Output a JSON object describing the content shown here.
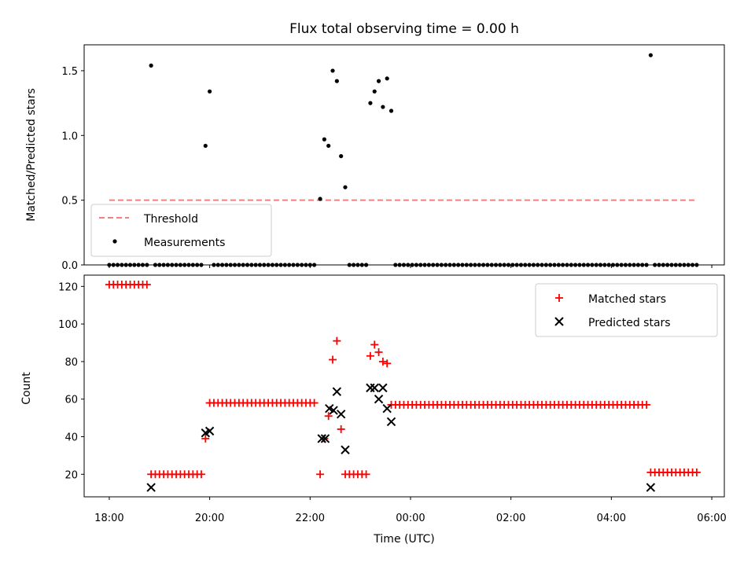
{
  "chart_data": [
    {
      "type": "scatter",
      "title": "Flux total observing time = 0.00 h",
      "xlabel": "",
      "ylabel": "Matched/Predicted stars",
      "ylim": [
        0,
        1.7
      ],
      "yticks": [
        0.0,
        0.5,
        1.0,
        1.5
      ],
      "ytick_labels": [
        "0.0",
        "0.5",
        "1.0",
        "1.5"
      ],
      "legend_position": "lower-left",
      "colors": {
        "threshold": "#f08080",
        "measurements": "#000000"
      },
      "threshold": {
        "name": "Threshold",
        "value": 0.5,
        "x_start": "18:00",
        "x_end": "05:40"
      },
      "measurements_name": "Measurements",
      "points": [
        [
          "18:00",
          0
        ],
        [
          "18:05",
          0
        ],
        [
          "18:10",
          0
        ],
        [
          "18:15",
          0
        ],
        [
          "18:20",
          0
        ],
        [
          "18:25",
          0
        ],
        [
          "18:30",
          0
        ],
        [
          "18:35",
          0
        ],
        [
          "18:40",
          0
        ],
        [
          "18:45",
          0
        ],
        [
          "18:50",
          1.54
        ],
        [
          "18:55",
          0
        ],
        [
          "19:00",
          0
        ],
        [
          "19:05",
          0
        ],
        [
          "19:10",
          0
        ],
        [
          "19:15",
          0
        ],
        [
          "19:20",
          0
        ],
        [
          "19:25",
          0
        ],
        [
          "19:30",
          0
        ],
        [
          "19:35",
          0
        ],
        [
          "19:40",
          0
        ],
        [
          "19:45",
          0
        ],
        [
          "19:50",
          0
        ],
        [
          "19:55",
          0.92
        ],
        [
          "20:00",
          1.34
        ],
        [
          "20:05",
          0
        ],
        [
          "20:10",
          0
        ],
        [
          "20:15",
          0
        ],
        [
          "20:20",
          0
        ],
        [
          "20:25",
          0
        ],
        [
          "20:30",
          0
        ],
        [
          "20:35",
          0
        ],
        [
          "20:40",
          0
        ],
        [
          "20:45",
          0
        ],
        [
          "20:50",
          0
        ],
        [
          "20:55",
          0
        ],
        [
          "21:00",
          0
        ],
        [
          "21:05",
          0
        ],
        [
          "21:10",
          0
        ],
        [
          "21:15",
          0
        ],
        [
          "21:20",
          0
        ],
        [
          "21:25",
          0
        ],
        [
          "21:30",
          0
        ],
        [
          "21:35",
          0
        ],
        [
          "21:40",
          0
        ],
        [
          "21:45",
          0
        ],
        [
          "21:50",
          0
        ],
        [
          "21:55",
          0
        ],
        [
          "22:00",
          0
        ],
        [
          "22:05",
          0
        ],
        [
          "22:12",
          0.51
        ],
        [
          "22:17",
          0.97
        ],
        [
          "22:22",
          0.92
        ],
        [
          "22:27",
          1.5
        ],
        [
          "22:32",
          1.42
        ],
        [
          "22:37",
          0.84
        ],
        [
          "22:42",
          0.6
        ],
        [
          "22:47",
          0
        ],
        [
          "22:52",
          0
        ],
        [
          "22:57",
          0
        ],
        [
          "23:02",
          0
        ],
        [
          "23:07",
          0
        ],
        [
          "23:12",
          1.25
        ],
        [
          "23:17",
          1.34
        ],
        [
          "23:22",
          1.42
        ],
        [
          "23:27",
          1.22
        ],
        [
          "23:32",
          1.44
        ],
        [
          "23:37",
          1.19
        ],
        [
          "23:42",
          0
        ],
        [
          "23:47",
          0
        ],
        [
          "23:52",
          0
        ],
        [
          "23:57",
          0
        ],
        [
          "00:02",
          0
        ],
        [
          "00:07",
          0
        ],
        [
          "00:12",
          0
        ],
        [
          "00:17",
          0
        ],
        [
          "00:22",
          0
        ],
        [
          "00:27",
          0
        ],
        [
          "00:32",
          0
        ],
        [
          "00:37",
          0
        ],
        [
          "00:42",
          0
        ],
        [
          "00:47",
          0
        ],
        [
          "00:52",
          0
        ],
        [
          "00:57",
          0
        ],
        [
          "01:02",
          0
        ],
        [
          "01:07",
          0
        ],
        [
          "01:12",
          0
        ],
        [
          "01:17",
          0
        ],
        [
          "01:22",
          0
        ],
        [
          "01:27",
          0
        ],
        [
          "01:32",
          0
        ],
        [
          "01:37",
          0
        ],
        [
          "01:42",
          0
        ],
        [
          "01:47",
          0
        ],
        [
          "01:52",
          0
        ],
        [
          "01:57",
          0
        ],
        [
          "02:02",
          0
        ],
        [
          "02:07",
          0
        ],
        [
          "02:12",
          0
        ],
        [
          "02:17",
          0
        ],
        [
          "02:22",
          0
        ],
        [
          "02:27",
          0
        ],
        [
          "02:32",
          0
        ],
        [
          "02:37",
          0
        ],
        [
          "02:42",
          0
        ],
        [
          "02:47",
          0
        ],
        [
          "02:52",
          0
        ],
        [
          "02:57",
          0
        ],
        [
          "03:02",
          0
        ],
        [
          "03:07",
          0
        ],
        [
          "03:12",
          0
        ],
        [
          "03:17",
          0
        ],
        [
          "03:22",
          0
        ],
        [
          "03:27",
          0
        ],
        [
          "03:32",
          0
        ],
        [
          "03:37",
          0
        ],
        [
          "03:42",
          0
        ],
        [
          "03:47",
          0
        ],
        [
          "03:52",
          0
        ],
        [
          "03:57",
          0
        ],
        [
          "04:02",
          0
        ],
        [
          "04:07",
          0
        ],
        [
          "04:12",
          0
        ],
        [
          "04:17",
          0
        ],
        [
          "04:22",
          0
        ],
        [
          "04:27",
          0
        ],
        [
          "04:32",
          0
        ],
        [
          "04:37",
          0
        ],
        [
          "04:42",
          0
        ],
        [
          "04:47",
          1.62
        ],
        [
          "04:52",
          0
        ],
        [
          "04:57",
          0
        ],
        [
          "05:02",
          0
        ],
        [
          "05:07",
          0
        ],
        [
          "05:12",
          0
        ],
        [
          "05:17",
          0
        ],
        [
          "05:22",
          0
        ],
        [
          "05:27",
          0
        ],
        [
          "05:32",
          0
        ],
        [
          "05:37",
          0
        ],
        [
          "05:42",
          0
        ]
      ]
    },
    {
      "type": "scatter",
      "title": "",
      "xlabel": "Time (UTC)",
      "ylabel": "Count",
      "xlim": [
        "17:30",
        "06:15"
      ],
      "ylim": [
        8,
        126
      ],
      "xticks": [
        "18:00",
        "20:00",
        "22:00",
        "00:00",
        "02:00",
        "04:00",
        "06:00"
      ],
      "yticks": [
        20,
        40,
        60,
        80,
        100,
        120
      ],
      "ytick_labels": [
        "20",
        "40",
        "60",
        "80",
        "100",
        "120"
      ],
      "legend_position": "upper-right",
      "colors": {
        "matched": "#ff0000",
        "predicted": "#000000"
      },
      "series": [
        {
          "name": "Matched stars",
          "marker": "plus",
          "points": [
            [
              "18:00",
              121
            ],
            [
              "18:05",
              121
            ],
            [
              "18:10",
              121
            ],
            [
              "18:15",
              121
            ],
            [
              "18:20",
              121
            ],
            [
              "18:25",
              121
            ],
            [
              "18:30",
              121
            ],
            [
              "18:35",
              121
            ],
            [
              "18:40",
              121
            ],
            [
              "18:45",
              121
            ],
            [
              "18:50",
              20
            ],
            [
              "18:55",
              20
            ],
            [
              "19:00",
              20
            ],
            [
              "19:05",
              20
            ],
            [
              "19:10",
              20
            ],
            [
              "19:15",
              20
            ],
            [
              "19:20",
              20
            ],
            [
              "19:25",
              20
            ],
            [
              "19:30",
              20
            ],
            [
              "19:35",
              20
            ],
            [
              "19:40",
              20
            ],
            [
              "19:45",
              20
            ],
            [
              "19:50",
              20
            ],
            [
              "19:55",
              39
            ],
            [
              "20:00",
              58
            ],
            [
              "20:05",
              58
            ],
            [
              "20:10",
              58
            ],
            [
              "20:15",
              58
            ],
            [
              "20:20",
              58
            ],
            [
              "20:25",
              58
            ],
            [
              "20:30",
              58
            ],
            [
              "20:35",
              58
            ],
            [
              "20:40",
              58
            ],
            [
              "20:45",
              58
            ],
            [
              "20:50",
              58
            ],
            [
              "20:55",
              58
            ],
            [
              "21:00",
              58
            ],
            [
              "21:05",
              58
            ],
            [
              "21:10",
              58
            ],
            [
              "21:15",
              58
            ],
            [
              "21:20",
              58
            ],
            [
              "21:25",
              58
            ],
            [
              "21:30",
              58
            ],
            [
              "21:35",
              58
            ],
            [
              "21:40",
              58
            ],
            [
              "21:45",
              58
            ],
            [
              "21:50",
              58
            ],
            [
              "21:55",
              58
            ],
            [
              "22:00",
              58
            ],
            [
              "22:05",
              58
            ],
            [
              "22:12",
              20
            ],
            [
              "22:17",
              39
            ],
            [
              "22:22",
              51
            ],
            [
              "22:27",
              81
            ],
            [
              "22:32",
              91
            ],
            [
              "22:37",
              44
            ],
            [
              "22:42",
              20
            ],
            [
              "22:47",
              20
            ],
            [
              "22:52",
              20
            ],
            [
              "22:57",
              20
            ],
            [
              "23:02",
              20
            ],
            [
              "23:07",
              20
            ],
            [
              "23:12",
              83
            ],
            [
              "23:17",
              89
            ],
            [
              "23:22",
              85
            ],
            [
              "23:27",
              80
            ],
            [
              "23:32",
              79
            ],
            [
              "23:37",
              57
            ],
            [
              "23:42",
              57
            ],
            [
              "23:47",
              57
            ],
            [
              "23:52",
              57
            ],
            [
              "23:57",
              57
            ],
            [
              "00:02",
              57
            ],
            [
              "00:07",
              57
            ],
            [
              "00:12",
              57
            ],
            [
              "00:17",
              57
            ],
            [
              "00:22",
              57
            ],
            [
              "00:27",
              57
            ],
            [
              "00:32",
              57
            ],
            [
              "00:37",
              57
            ],
            [
              "00:42",
              57
            ],
            [
              "00:47",
              57
            ],
            [
              "00:52",
              57
            ],
            [
              "00:57",
              57
            ],
            [
              "01:02",
              57
            ],
            [
              "01:07",
              57
            ],
            [
              "01:12",
              57
            ],
            [
              "01:17",
              57
            ],
            [
              "01:22",
              57
            ],
            [
              "01:27",
              57
            ],
            [
              "01:32",
              57
            ],
            [
              "01:37",
              57
            ],
            [
              "01:42",
              57
            ],
            [
              "01:47",
              57
            ],
            [
              "01:52",
              57
            ],
            [
              "01:57",
              57
            ],
            [
              "02:02",
              57
            ],
            [
              "02:07",
              57
            ],
            [
              "02:12",
              57
            ],
            [
              "02:17",
              57
            ],
            [
              "02:22",
              57
            ],
            [
              "02:27",
              57
            ],
            [
              "02:32",
              57
            ],
            [
              "02:37",
              57
            ],
            [
              "02:42",
              57
            ],
            [
              "02:47",
              57
            ],
            [
              "02:52",
              57
            ],
            [
              "02:57",
              57
            ],
            [
              "03:02",
              57
            ],
            [
              "03:07",
              57
            ],
            [
              "03:12",
              57
            ],
            [
              "03:17",
              57
            ],
            [
              "03:22",
              57
            ],
            [
              "03:27",
              57
            ],
            [
              "03:32",
              57
            ],
            [
              "03:37",
              57
            ],
            [
              "03:42",
              57
            ],
            [
              "03:47",
              57
            ],
            [
              "03:52",
              57
            ],
            [
              "03:57",
              57
            ],
            [
              "04:02",
              57
            ],
            [
              "04:07",
              57
            ],
            [
              "04:12",
              57
            ],
            [
              "04:17",
              57
            ],
            [
              "04:22",
              57
            ],
            [
              "04:27",
              57
            ],
            [
              "04:32",
              57
            ],
            [
              "04:37",
              57
            ],
            [
              "04:42",
              57
            ],
            [
              "04:47",
              21
            ],
            [
              "04:52",
              21
            ],
            [
              "04:57",
              21
            ],
            [
              "05:02",
              21
            ],
            [
              "05:07",
              21
            ],
            [
              "05:12",
              21
            ],
            [
              "05:17",
              21
            ],
            [
              "05:22",
              21
            ],
            [
              "05:27",
              21
            ],
            [
              "05:32",
              21
            ],
            [
              "05:37",
              21
            ],
            [
              "05:42",
              21
            ]
          ]
        },
        {
          "name": "Predicted stars",
          "marker": "x",
          "points": [
            [
              "18:50",
              13
            ],
            [
              "19:55",
              42
            ],
            [
              "20:00",
              43
            ],
            [
              "22:14",
              39
            ],
            [
              "22:18",
              39
            ],
            [
              "22:23",
              55
            ],
            [
              "22:28",
              54
            ],
            [
              "22:32",
              64
            ],
            [
              "22:37",
              52
            ],
            [
              "22:42",
              33
            ],
            [
              "23:12",
              66
            ],
            [
              "23:17",
              66
            ],
            [
              "23:22",
              60
            ],
            [
              "23:27",
              66
            ],
            [
              "23:32",
              55
            ],
            [
              "23:37",
              48
            ],
            [
              "04:47",
              13
            ]
          ]
        }
      ]
    }
  ]
}
